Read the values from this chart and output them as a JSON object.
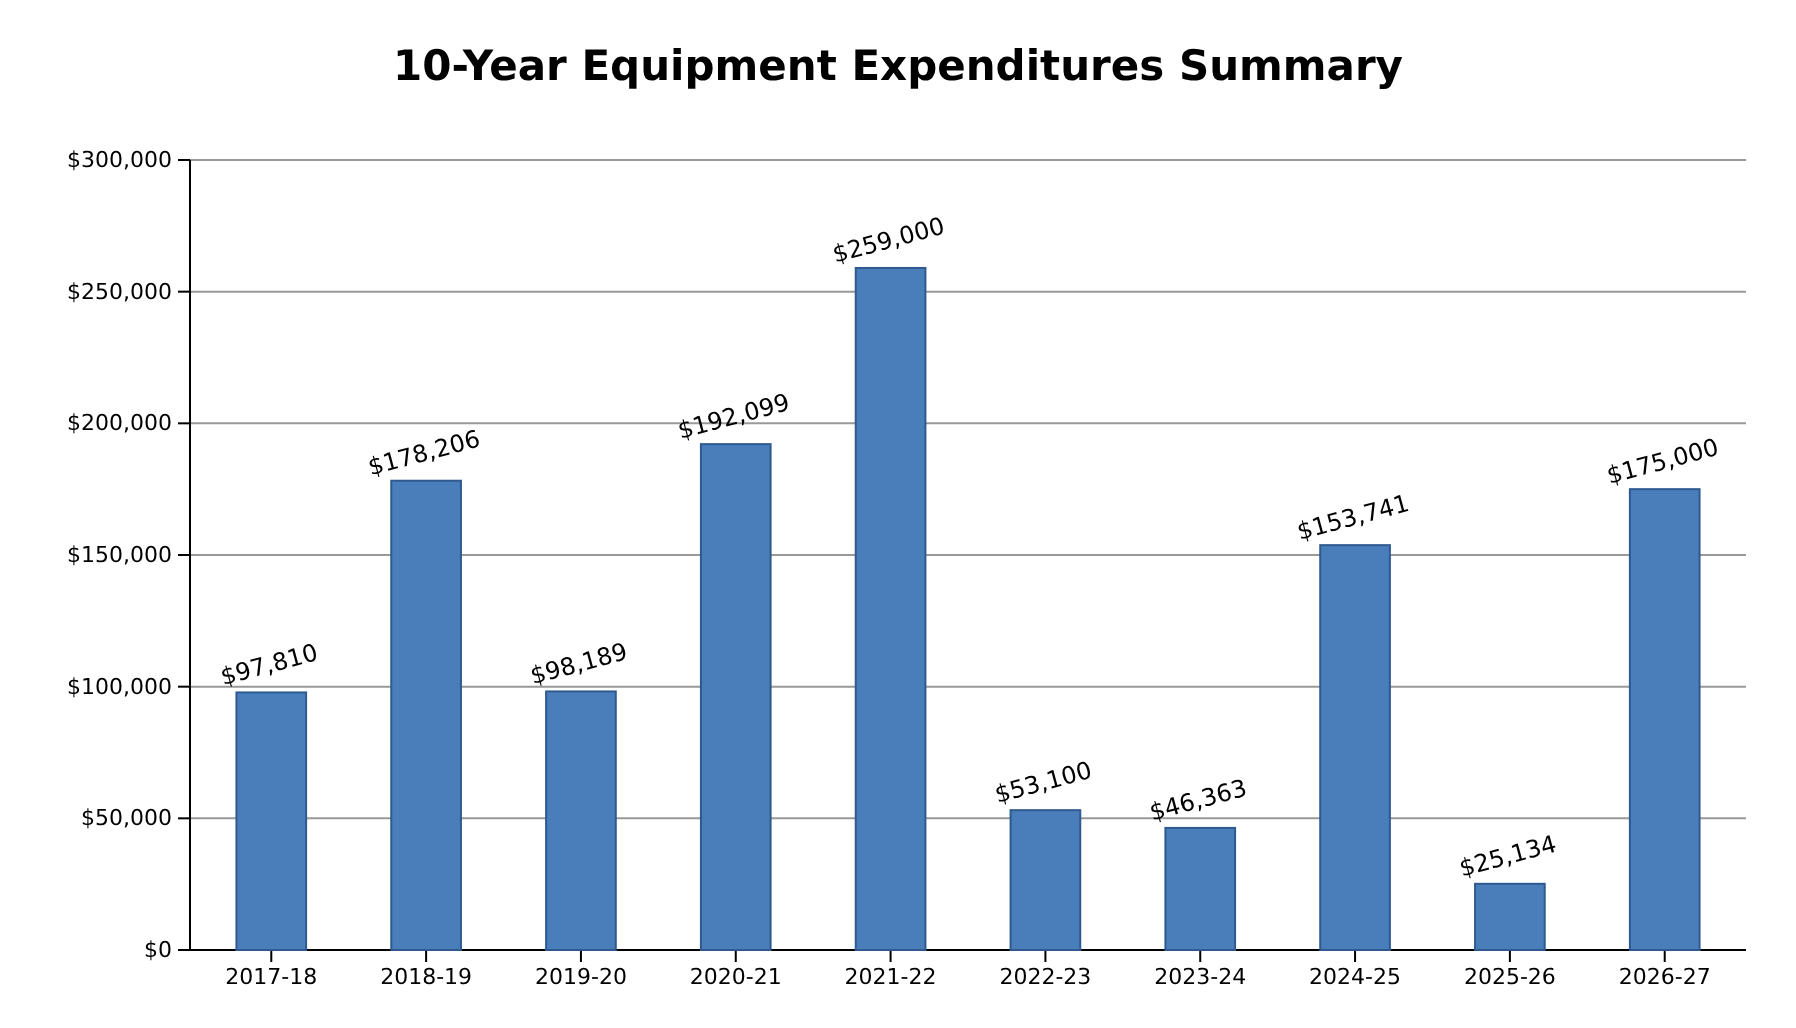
{
  "chart_data": {
    "type": "bar",
    "title": "10-Year Equipment Expenditures Summary",
    "categories": [
      "2017-18",
      "2018-19",
      "2019-20",
      "2020-21",
      "2021-22",
      "2022-23",
      "2023-24",
      "2024-25",
      "2025-26",
      "2026-27"
    ],
    "values": [
      97810,
      178206,
      98189,
      192099,
      259000,
      53100,
      46363,
      153741,
      25134,
      175000
    ],
    "value_labels": [
      "$97,810",
      "$178,206",
      "$98,189",
      "$192,099",
      "$259,000",
      "$53,100",
      "$46,363",
      "$153,741",
      "$25,134",
      "$175,000"
    ],
    "color": "#4a7ebb",
    "ylim": [
      0,
      300000
    ],
    "yticks": [
      {
        "value": 0,
        "label": "$0"
      },
      {
        "value": 50000,
        "label": "$50,000"
      },
      {
        "value": 100000,
        "label": "$100,000"
      },
      {
        "value": 150000,
        "label": "$150,000"
      },
      {
        "value": 200000,
        "label": "$200,000"
      },
      {
        "value": 250000,
        "label": "$250,000"
      },
      {
        "value": 300000,
        "label": "$300,000"
      }
    ],
    "grid": "y"
  }
}
